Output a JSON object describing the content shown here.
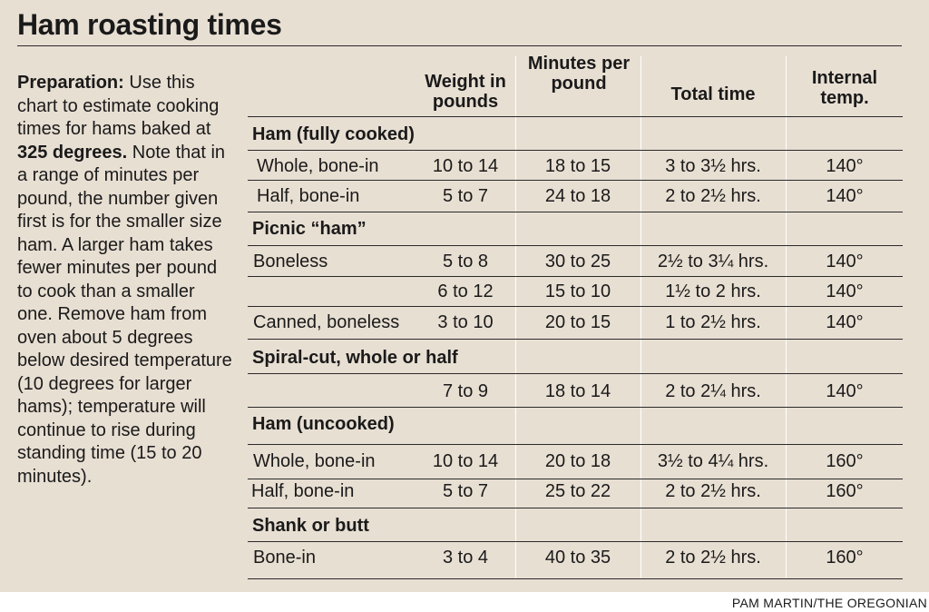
{
  "title": "Ham roasting times",
  "intro": {
    "lead": "Preparation:",
    "p1": " Use this chart to estimate cooking times for hams baked at ",
    "temp": "325 degrees.",
    "p2": " Note that in a range of minutes per pound, the number given first is for the smaller size ham. A larger ham takes fewer minutes per pound to cook than a smaller one. Remove ham from oven about 5 degrees below desired temperature (10 degrees for larger hams); temperature will continue to rise during standing time (15 to 20 minutes)."
  },
  "headers": {
    "weight": "Weight in pounds",
    "minutes": "Minutes per pound",
    "total": "Total time",
    "internal": "Internal temp."
  },
  "sections": {
    "fully_cooked": "Ham (fully cooked)",
    "picnic": "Picnic “ham”",
    "spiral": "Spiral-cut, whole or half",
    "uncooked": "Ham (uncooked)",
    "shank": "Shank or butt"
  },
  "rows": [
    {
      "label": "Whole, bone-in",
      "weight": "10 to 14",
      "minutes": "18 to 15",
      "total": "3 to 3½ hrs.",
      "temp": "140°"
    },
    {
      "label": "Half, bone-in",
      "weight": "5 to 7",
      "minutes": "24 to 18",
      "total": "2 to 2½ hrs.",
      "temp": "140°"
    },
    {
      "label": "Boneless",
      "weight": "5 to 8",
      "minutes": "30 to 25",
      "total": "2½ to 3¼ hrs.",
      "temp": "140°"
    },
    {
      "label": "",
      "weight": "6 to 12",
      "minutes": "15 to 10",
      "total": "1½ to 2 hrs.",
      "temp": "140°"
    },
    {
      "label": "Canned, boneless",
      "weight": "3 to 10",
      "minutes": "20 to 15",
      "total": "1 to 2½ hrs.",
      "temp": "140°"
    },
    {
      "label": "",
      "weight": "7 to 9",
      "minutes": "18 to 14",
      "total": "2 to 2¼ hrs.",
      "temp": "140°"
    },
    {
      "label": "Whole, bone-in",
      "weight": "10 to 14",
      "minutes": "20 to 18",
      "total": "3½ to 4¼ hrs.",
      "temp": "160°"
    },
    {
      "label": "Half, bone-in",
      "weight": "5 to 7",
      "minutes": "25 to 22",
      "total": "2 to 2½ hrs.",
      "temp": "160°"
    },
    {
      "label": "Bone-in",
      "weight": "3 to 4",
      "minutes": "40 to 35",
      "total": "2 to 2½ hrs.",
      "temp": "160°"
    }
  ],
  "credit": "PAM MARTIN/THE OREGONIAN",
  "colors": {
    "background": "#e8dfd3",
    "text": "#1a1a1a",
    "column_divider": "#ffffff"
  }
}
